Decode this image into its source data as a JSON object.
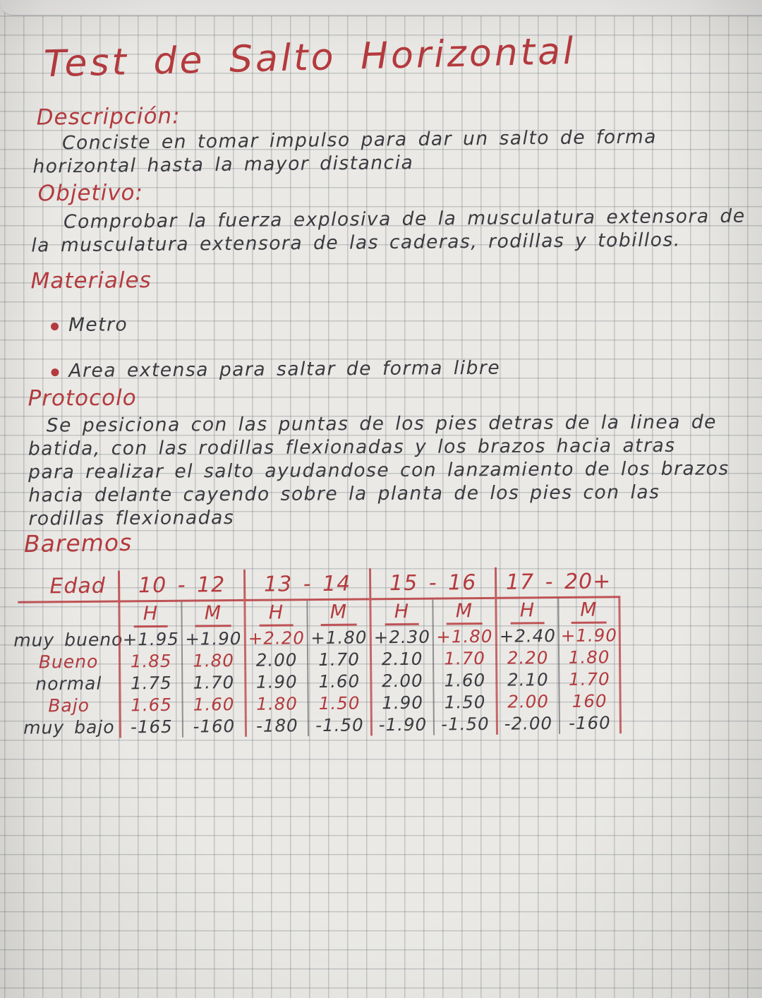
{
  "title": "Test de Salto Horizontal",
  "ink": {
    "red": "#b43a3e",
    "black": "#3a3a40"
  },
  "sections": {
    "descripcion": {
      "heading": "Descripción:",
      "lines": [
        "Conciste en tomar impulso para dar un salto de forma",
        "horizontal hasta la mayor distancia"
      ]
    },
    "objetivo": {
      "heading": "Objetivo:",
      "lines": [
        "Comprobar la fuerza explosiva de la musculatura extensora de",
        "la musculatura extensora de las caderas, rodillas y tobillos."
      ]
    },
    "materiales": {
      "heading": "Materiales",
      "items": [
        "Metro",
        "Area extensa para saltar de forma libre"
      ]
    },
    "protocolo": {
      "heading": "Protocolo",
      "lines": [
        "Se pesiciona con las puntas de los pies detras de la linea de",
        "batida, con las rodillas flexionadas y los brazos hacia atras",
        "para realizar el salto ayudandose con lanzamiento de los brazos",
        "hacia delante cayendo sobre la planta de los pies con las",
        "rodillas flexionadas"
      ]
    },
    "baremos": {
      "heading": "Baremos"
    }
  },
  "table": {
    "corner_label": "Edad",
    "age_groups": [
      "10 - 12",
      "13 - 14",
      "15 - 16",
      "17 - 20+"
    ],
    "sex_headers": [
      "H",
      "M",
      "H",
      "M",
      "H",
      "M",
      "H",
      "M"
    ],
    "rows": [
      {
        "label": "muy bueno",
        "label_ink": "black",
        "values": [
          "+1.95",
          "+1.90",
          "+2.20",
          "+1.80",
          "+2.30",
          "+1.80",
          "+2.40",
          "+1.90"
        ],
        "inks": [
          "black",
          "black",
          "red",
          "black",
          "black",
          "red",
          "black",
          "red"
        ]
      },
      {
        "label": "Bueno",
        "label_ink": "red",
        "values": [
          "1.85",
          "1.80",
          "2.00",
          "1.70",
          "2.10",
          "1.70",
          "2.20",
          "1.80"
        ],
        "inks": [
          "red",
          "red",
          "black",
          "black",
          "black",
          "red",
          "red",
          "red"
        ]
      },
      {
        "label": "normal",
        "label_ink": "black",
        "values": [
          "1.75",
          "1.70",
          "1.90",
          "1.60",
          "2.00",
          "1.60",
          "2.10",
          "1.70"
        ],
        "inks": [
          "black",
          "black",
          "black",
          "black",
          "black",
          "black",
          "black",
          "red"
        ]
      },
      {
        "label": "Bajo",
        "label_ink": "red",
        "values": [
          "1.65",
          "1.60",
          "1.80",
          "1.50",
          "1.90",
          "1.50",
          "2.00",
          "160"
        ],
        "inks": [
          "red",
          "red",
          "red",
          "red",
          "black",
          "black",
          "red",
          "red"
        ]
      },
      {
        "label": "muy bajo",
        "label_ink": "black",
        "values": [
          "-165",
          "-160",
          "-180",
          "-1.50",
          "-1.90",
          "-1.50",
          "-2.00",
          "-160"
        ],
        "inks": [
          "black",
          "black",
          "black",
          "black",
          "black",
          "black",
          "black",
          "black"
        ]
      }
    ]
  }
}
